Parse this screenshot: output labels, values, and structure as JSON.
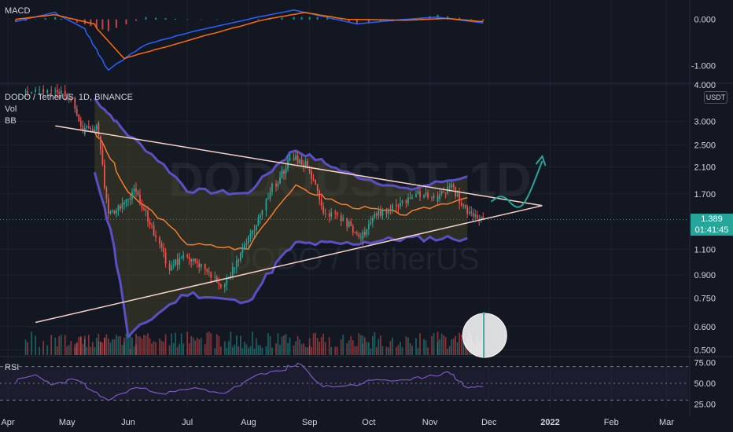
{
  "symbol": {
    "title": "DODO / TetherUS, 1D, BINANCE",
    "watermark_main": "DODOUSDT, 1D",
    "watermark_sub": "DODO / TetherUS",
    "currency": "USDT"
  },
  "indicators": {
    "macd_label": "MACD",
    "vol_label": "Vol",
    "bb_label": "BB",
    "rsi_label": "RSI"
  },
  "last_price": {
    "value": "1.389",
    "countdown": "01:41:45",
    "color": "#26a69a"
  },
  "colors": {
    "background": "#131722",
    "up": "#26a69a",
    "down": "#ef5350",
    "bb_band": "#5b4fc4",
    "bb_basis": "#f57c2c",
    "macd_line": "#2962ff",
    "signal_line": "#ff6d00",
    "rsi_line": "#7e57c2",
    "triangle": "#f5d0c5",
    "projection": "#26a69a",
    "circle": "#ffffff"
  },
  "chart_data": [
    {
      "type": "candlestick",
      "pane": "price",
      "title": "DODO / TetherUS, 1D, BINANCE",
      "x_axis_labels": [
        "Apr",
        "May",
        "Jun",
        "Jul",
        "Aug",
        "Sep",
        "Oct",
        "Nov",
        "Dec",
        "2022",
        "Feb",
        "Mar"
      ],
      "y_axis_ticks": [
        "4.000",
        "3.000",
        "2.500",
        "2.100",
        "1.700",
        "1.389",
        "1.100",
        "0.900",
        "0.750",
        "0.600",
        "0.500"
      ],
      "y_scale": "log",
      "ylim": [
        0.48,
        4.0
      ],
      "close_series": [
        {
          "date": "2021-04-10",
          "value": 3.7
        },
        {
          "date": "2021-04-25",
          "value": 3.9
        },
        {
          "date": "2021-05-05",
          "value": 3.4
        },
        {
          "date": "2021-05-10",
          "value": 2.8
        },
        {
          "date": "2021-05-17",
          "value": 2.9
        },
        {
          "date": "2021-05-22",
          "value": 1.45
        },
        {
          "date": "2021-05-30",
          "value": 1.55
        },
        {
          "date": "2021-06-05",
          "value": 1.75
        },
        {
          "date": "2021-06-12",
          "value": 1.35
        },
        {
          "date": "2021-06-22",
          "value": 0.95
        },
        {
          "date": "2021-07-01",
          "value": 1.05
        },
        {
          "date": "2021-07-10",
          "value": 0.95
        },
        {
          "date": "2021-07-20",
          "value": 0.82
        },
        {
          "date": "2021-07-28",
          "value": 1.05
        },
        {
          "date": "2021-08-05",
          "value": 1.35
        },
        {
          "date": "2021-08-15",
          "value": 1.85
        },
        {
          "date": "2021-08-24",
          "value": 2.25
        },
        {
          "date": "2021-09-01",
          "value": 2.1
        },
        {
          "date": "2021-09-08",
          "value": 1.5
        },
        {
          "date": "2021-09-20",
          "value": 1.35
        },
        {
          "date": "2021-09-28",
          "value": 1.2
        },
        {
          "date": "2021-10-05",
          "value": 1.45
        },
        {
          "date": "2021-10-15",
          "value": 1.55
        },
        {
          "date": "2021-10-25",
          "value": 1.7
        },
        {
          "date": "2021-11-05",
          "value": 1.65
        },
        {
          "date": "2021-11-12",
          "value": 1.8
        },
        {
          "date": "2021-11-20",
          "value": 1.45
        },
        {
          "date": "2021-11-28",
          "value": 1.389
        }
      ],
      "bollinger_bands": {
        "upper": [
          {
            "date": "2021-05-15",
            "value": 3.6
          },
          {
            "date": "2021-06-01",
            "value": 2.7
          },
          {
            "date": "2021-07-01",
            "value": 1.75
          },
          {
            "date": "2021-08-01",
            "value": 1.7
          },
          {
            "date": "2021-08-25",
            "value": 2.4
          },
          {
            "date": "2021-09-20",
            "value": 2.0
          },
          {
            "date": "2021-10-20",
            "value": 1.75
          },
          {
            "date": "2021-11-20",
            "value": 1.95
          }
        ],
        "basis": [
          {
            "date": "2021-05-15",
            "value": 2.8
          },
          {
            "date": "2021-06-01",
            "value": 1.7
          },
          {
            "date": "2021-07-01",
            "value": 1.15
          },
          {
            "date": "2021-08-01",
            "value": 1.1
          },
          {
            "date": "2021-08-25",
            "value": 1.8
          },
          {
            "date": "2021-09-20",
            "value": 1.55
          },
          {
            "date": "2021-10-20",
            "value": 1.45
          },
          {
            "date": "2021-11-20",
            "value": 1.65
          }
        ],
        "lower": [
          {
            "date": "2021-05-15",
            "value": 2.0
          },
          {
            "date": "2021-06-01",
            "value": 0.55
          },
          {
            "date": "2021-07-01",
            "value": 0.78
          },
          {
            "date": "2021-08-01",
            "value": 0.72
          },
          {
            "date": "2021-08-25",
            "value": 1.15
          },
          {
            "date": "2021-09-20",
            "value": 1.15
          },
          {
            "date": "2021-10-20",
            "value": 1.2
          },
          {
            "date": "2021-11-20",
            "value": 1.2
          }
        ]
      },
      "drawings": {
        "triangle_upper": [
          {
            "date": "2021-04-25",
            "value": 2.9
          },
          {
            "date": "2021-12-28",
            "value": 1.55
          }
        ],
        "triangle_lower": [
          {
            "date": "2021-04-15",
            "value": 0.62
          },
          {
            "date": "2021-12-28",
            "value": 1.55
          }
        ],
        "projection_path": [
          {
            "date": "2021-12-02",
            "value": 1.6
          },
          {
            "date": "2021-12-08",
            "value": 1.7
          },
          {
            "date": "2021-12-15",
            "value": 1.5
          },
          {
            "date": "2021-12-20",
            "value": 1.6
          },
          {
            "date": "2021-12-28",
            "value": 2.2
          }
        ],
        "circle_highlight": {
          "date": "2021-11-28",
          "value": 0.56
        }
      }
    },
    {
      "type": "bar",
      "pane": "volume",
      "name": "Vol",
      "description": "daily volume histogram at bottom of price pane; largest spike at last bar (circled)"
    },
    {
      "type": "line",
      "pane": "macd",
      "name": "MACD",
      "y_axis_ticks": [
        "0.000",
        "-1.000"
      ],
      "macd": [
        {
          "date": "2021-04-05",
          "value": -0.05
        },
        {
          "date": "2021-04-25",
          "value": 0.15
        },
        {
          "date": "2021-05-10",
          "value": -0.2
        },
        {
          "date": "2021-05-22",
          "value": -1.1
        },
        {
          "date": "2021-06-10",
          "value": -0.55
        },
        {
          "date": "2021-07-01",
          "value": -0.3
        },
        {
          "date": "2021-08-01",
          "value": 0.0
        },
        {
          "date": "2021-08-24",
          "value": 0.2
        },
        {
          "date": "2021-09-10",
          "value": 0.05
        },
        {
          "date": "2021-09-25",
          "value": -0.1
        },
        {
          "date": "2021-10-20",
          "value": 0.0
        },
        {
          "date": "2021-11-05",
          "value": 0.05
        },
        {
          "date": "2021-11-28",
          "value": -0.08
        }
      ],
      "signal": [
        {
          "date": "2021-04-05",
          "value": 0.0
        },
        {
          "date": "2021-04-25",
          "value": 0.1
        },
        {
          "date": "2021-05-15",
          "value": -0.1
        },
        {
          "date": "2021-05-30",
          "value": -0.85
        },
        {
          "date": "2021-06-20",
          "value": -0.6
        },
        {
          "date": "2021-07-15",
          "value": -0.3
        },
        {
          "date": "2021-08-10",
          "value": 0.0
        },
        {
          "date": "2021-08-30",
          "value": 0.15
        },
        {
          "date": "2021-09-20",
          "value": 0.0
        },
        {
          "date": "2021-10-20",
          "value": -0.02
        },
        {
          "date": "2021-11-10",
          "value": 0.02
        },
        {
          "date": "2021-11-28",
          "value": -0.05
        }
      ],
      "ylim": [
        -1.35,
        0.35
      ]
    },
    {
      "type": "line",
      "pane": "rsi",
      "name": "RSI",
      "y_axis_ticks": [
        "75.00",
        "50.00",
        "25.00"
      ],
      "bands": [
        70,
        30
      ],
      "ylim": [
        20,
        80
      ],
      "values": [
        {
          "date": "2021-04-05",
          "value": 52
        },
        {
          "date": "2021-04-15",
          "value": 60
        },
        {
          "date": "2021-04-25",
          "value": 48
        },
        {
          "date": "2021-05-05",
          "value": 55
        },
        {
          "date": "2021-05-15",
          "value": 40
        },
        {
          "date": "2021-05-22",
          "value": 30
        },
        {
          "date": "2021-06-05",
          "value": 45
        },
        {
          "date": "2021-06-20",
          "value": 38
        },
        {
          "date": "2021-07-05",
          "value": 44
        },
        {
          "date": "2021-07-20",
          "value": 38
        },
        {
          "date": "2021-08-05",
          "value": 58
        },
        {
          "date": "2021-08-20",
          "value": 68
        },
        {
          "date": "2021-08-28",
          "value": 72
        },
        {
          "date": "2021-09-08",
          "value": 46
        },
        {
          "date": "2021-09-25",
          "value": 48
        },
        {
          "date": "2021-10-05",
          "value": 55
        },
        {
          "date": "2021-10-20",
          "value": 52
        },
        {
          "date": "2021-11-01",
          "value": 60
        },
        {
          "date": "2021-11-12",
          "value": 62
        },
        {
          "date": "2021-11-20",
          "value": 45
        },
        {
          "date": "2021-11-28",
          "value": 46
        }
      ]
    }
  ]
}
